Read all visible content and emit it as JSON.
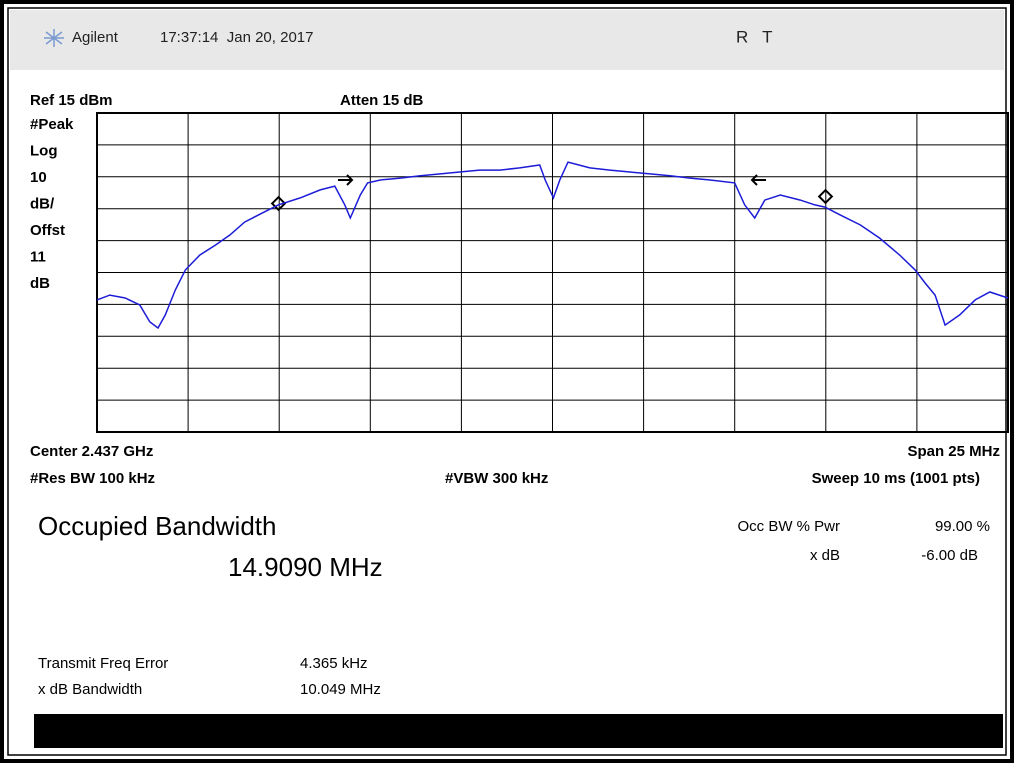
{
  "header": {
    "brand": "Agilent",
    "timestamp": "17:37:14  Jan 20, 2017",
    "flags": "R   T"
  },
  "top_labels": {
    "ref": "Ref 15 dBm",
    "atten": "Atten 15 dB"
  },
  "side_labels": [
    "#Peak",
    "Log",
    "10",
    "dB/",
    "Offst",
    "11",
    "dB"
  ],
  "bottom_labels": {
    "center": "Center 2.437 GHz",
    "span": "Span 25 MHz",
    "res_bw": "#Res BW 100 kHz",
    "vbw": "#VBW 300 kHz",
    "sweep": "Sweep 10 ms (1001 pts)"
  },
  "measurement": {
    "title": "Occupied Bandwidth",
    "value": "14.9090 MHz",
    "settings": [
      {
        "label": "Occ BW % Pwr",
        "value": "99.00 %"
      },
      {
        "label": "x dB",
        "value": "-6.00 dB"
      }
    ],
    "results": [
      {
        "label": "Transmit Freq Error",
        "value": "4.365 kHz"
      },
      {
        "label": "x dB Bandwidth",
        "value": "10.049 MHz"
      }
    ]
  },
  "chart_data": {
    "type": "line",
    "color": "#1c1cd8",
    "xlim": [
      0,
      1000
    ],
    "ylim": [
      -85,
      15
    ],
    "x": [
      0,
      14,
      31,
      47,
      58,
      67,
      75,
      86,
      97,
      113,
      130,
      146,
      162,
      181,
      199,
      223,
      245,
      261,
      272,
      278,
      289,
      297,
      311,
      333,
      355,
      377,
      398,
      420,
      442,
      464,
      486,
      492,
      501,
      508,
      517,
      541,
      563,
      585,
      607,
      629,
      651,
      673,
      700,
      711,
      722,
      733,
      750,
      772,
      788,
      799,
      816,
      838,
      859,
      881,
      898,
      909,
      920,
      931,
      947,
      964,
      980,
      1000
    ],
    "values": [
      -43.6,
      -42.1,
      -43.0,
      -45.2,
      -50.5,
      -52.4,
      -48.3,
      -40.5,
      -34.2,
      -29.5,
      -26.4,
      -23.2,
      -19.2,
      -16.4,
      -13.8,
      -11.6,
      -9.1,
      -7.9,
      -13.8,
      -17.9,
      -10.7,
      -6.9,
      -6.0,
      -5.4,
      -4.7,
      -4.1,
      -3.5,
      -2.9,
      -2.9,
      -2.2,
      -1.3,
      -6.0,
      -11.6,
      -6.0,
      -0.4,
      -2.2,
      -2.9,
      -3.5,
      -4.1,
      -4.7,
      -5.4,
      -6.0,
      -6.9,
      -13.8,
      -17.9,
      -12.3,
      -10.7,
      -12.3,
      -13.8,
      -14.5,
      -17.0,
      -20.1,
      -24.2,
      -29.5,
      -34.2,
      -38.3,
      -42.1,
      -51.5,
      -48.3,
      -43.6,
      -41.1,
      -43.0
    ]
  }
}
